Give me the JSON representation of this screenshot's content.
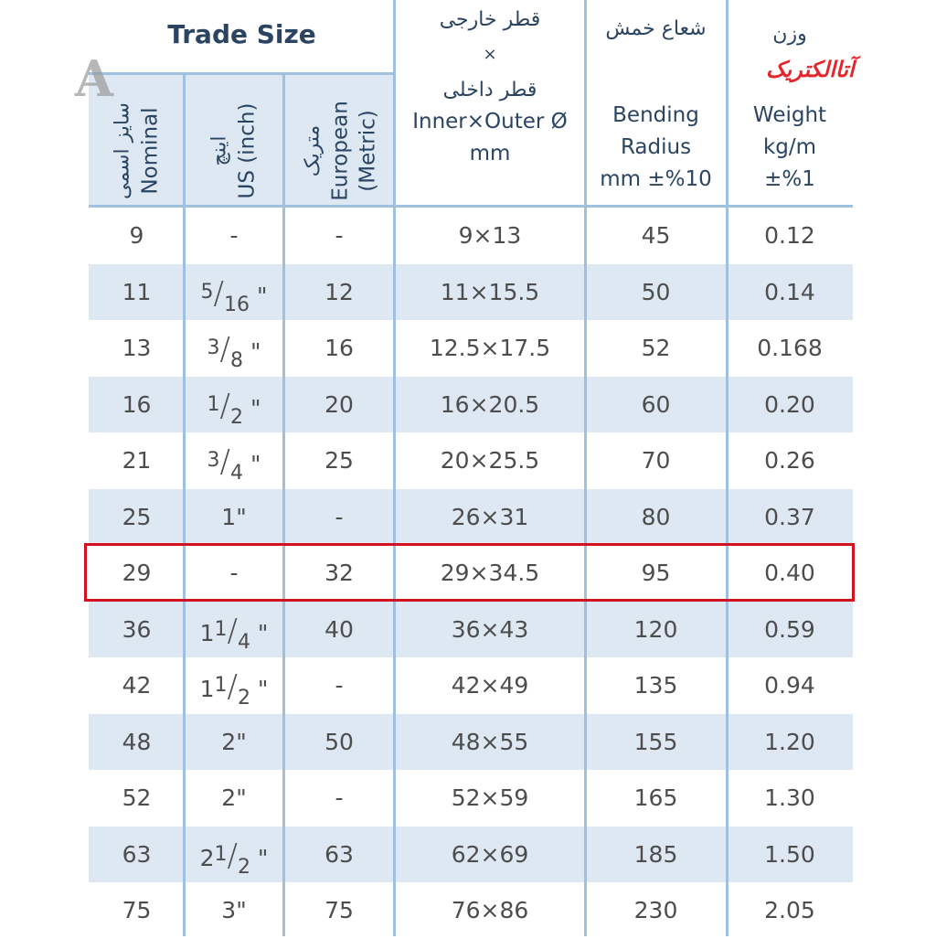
{
  "header": {
    "trade_size": "Trade Size",
    "nominal_fa": "سایز اسمی",
    "nominal_en": "Nominal",
    "us_fa": "اینچ",
    "us_en": "US (inch)",
    "metric_fa": "متریک",
    "metric_en1": "European",
    "metric_en2": "(Metric)",
    "dims_fa1": "قطر خارجی",
    "dims_x": "×",
    "dims_fa2": "قطر داخلی",
    "dims_en1": "Inner×Outer Ø",
    "dims_en2": "mm",
    "bend_fa": "شعاع خمش",
    "bend_en1": "Bending",
    "bend_en2": "Radius",
    "bend_en3": "mm ±%10",
    "weight_fa": "وزن",
    "weight_en1": "Weight",
    "weight_en2": "kg/m",
    "weight_en3": "±%1"
  },
  "logo_text": "آتاالکتریک",
  "watermark": "A",
  "highlighted_row": "29",
  "colors": {
    "header_text": "#2a4462",
    "shade": "#dde8f3",
    "grid": "#9fc0de",
    "highlight": "#d3121f",
    "logo": "#e2262b"
  },
  "rows": [
    {
      "nominal": "9",
      "us": {
        "text": "-"
      },
      "metric": "-",
      "dims": "9×13",
      "bend": "45",
      "weight": "0.12"
    },
    {
      "nominal": "11",
      "us": {
        "whole": "",
        "num": "5",
        "den": "16",
        "unit": "\""
      },
      "metric": "12",
      "dims": "11×15.5",
      "bend": "50",
      "weight": "0.14"
    },
    {
      "nominal": "13",
      "us": {
        "whole": "",
        "num": "3",
        "den": "8",
        "unit": "\""
      },
      "metric": "16",
      "dims": "12.5×17.5",
      "bend": "52",
      "weight": "0.168"
    },
    {
      "nominal": "16",
      "us": {
        "whole": "",
        "num": "1",
        "den": "2",
        "unit": "\""
      },
      "metric": "20",
      "dims": "16×20.5",
      "bend": "60",
      "weight": "0.20"
    },
    {
      "nominal": "21",
      "us": {
        "whole": "",
        "num": "3",
        "den": "4",
        "unit": "\""
      },
      "metric": "25",
      "dims": "20×25.5",
      "bend": "70",
      "weight": "0.26"
    },
    {
      "nominal": "25",
      "us": {
        "text": "1\""
      },
      "metric": "-",
      "dims": "26×31",
      "bend": "80",
      "weight": "0.37"
    },
    {
      "nominal": "29",
      "us": {
        "text": "-"
      },
      "metric": "32",
      "dims": "29×34.5",
      "bend": "95",
      "weight": "0.40"
    },
    {
      "nominal": "36",
      "us": {
        "whole": "1",
        "num": "1",
        "den": "4",
        "unit": "\""
      },
      "metric": "40",
      "dims": "36×43",
      "bend": "120",
      "weight": "0.59"
    },
    {
      "nominal": "42",
      "us": {
        "whole": "1",
        "num": "1",
        "den": "2",
        "unit": "\""
      },
      "metric": "-",
      "dims": "42×49",
      "bend": "135",
      "weight": "0.94"
    },
    {
      "nominal": "48",
      "us": {
        "text": "2\""
      },
      "metric": "50",
      "dims": "48×55",
      "bend": "155",
      "weight": "1.20"
    },
    {
      "nominal": "52",
      "us": {
        "text": "2\""
      },
      "metric": "-",
      "dims": "52×59",
      "bend": "165",
      "weight": "1.30"
    },
    {
      "nominal": "63",
      "us": {
        "whole": "2",
        "num": "1",
        "den": "2",
        "unit": "\""
      },
      "metric": "63",
      "dims": "62×69",
      "bend": "185",
      "weight": "1.50"
    },
    {
      "nominal": "75",
      "us": {
        "text": "3\""
      },
      "metric": "75",
      "dims": "76×86",
      "bend": "230",
      "weight": "2.05"
    }
  ]
}
